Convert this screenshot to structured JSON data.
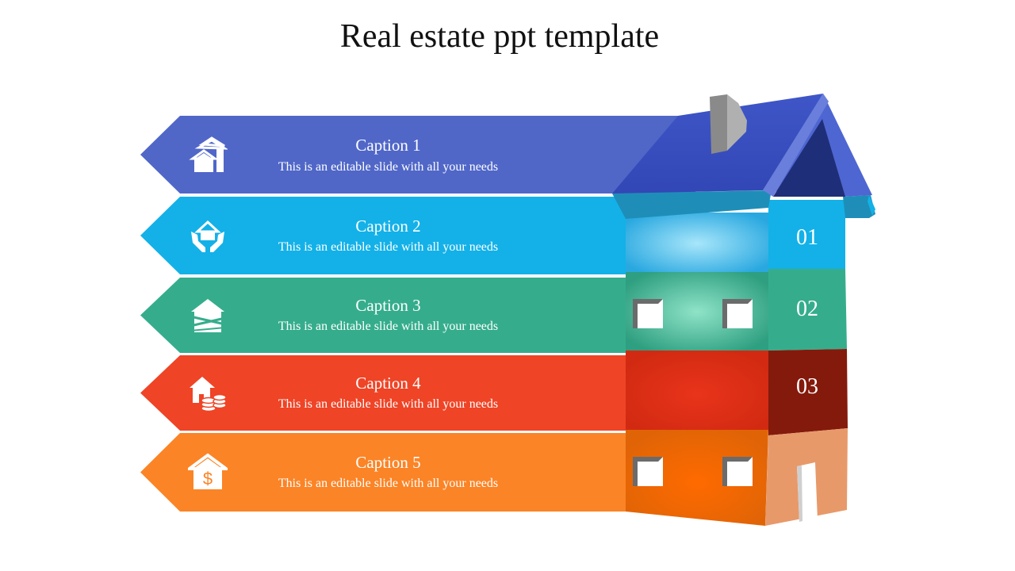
{
  "title": "Real estate ppt template",
  "rows": [
    {
      "caption": "Caption 1",
      "text": "This is an editable slide with all your needs",
      "color": "#5067C8",
      "icon": "houses-icon"
    },
    {
      "caption": "Caption 2",
      "text": "This is an editable slide with all your needs",
      "color": "#13B1E8",
      "icon": "hands-house-icon"
    },
    {
      "caption": "Caption 3",
      "text": "This is an editable slide with all your needs",
      "color": "#35AD8D",
      "icon": "boarded-house-icon"
    },
    {
      "caption": "Caption 4",
      "text": "This is an editable slide with all your needs",
      "color": "#EF4426",
      "icon": "house-coins-icon"
    },
    {
      "caption": "Caption 5",
      "text": "This is an editable slide with all your needs",
      "color": "#FB8426",
      "icon": "house-dollar-icon"
    }
  ],
  "numbers": [
    "01",
    "02",
    "03"
  ]
}
